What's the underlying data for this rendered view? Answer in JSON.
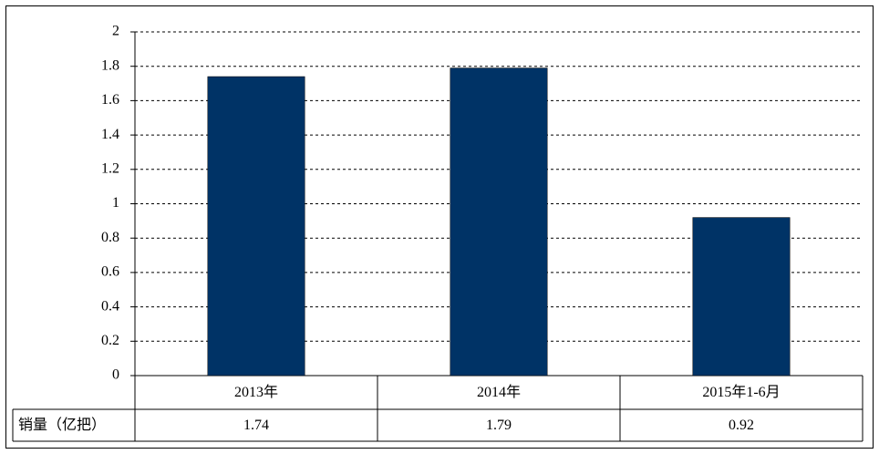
{
  "chart_data": {
    "type": "bar",
    "categories": [
      "2013年",
      "2014年",
      "2015年1-6月"
    ],
    "series": [
      {
        "name": "销量（亿把）",
        "color": "#003366",
        "values": [
          1.74,
          1.79,
          0.92
        ]
      }
    ],
    "ylim": [
      0,
      2
    ],
    "yticks": [
      0,
      0.2,
      0.4,
      0.6,
      0.8,
      1,
      1.2,
      1.4,
      1.6,
      1.8,
      2
    ],
    "grid": true
  }
}
